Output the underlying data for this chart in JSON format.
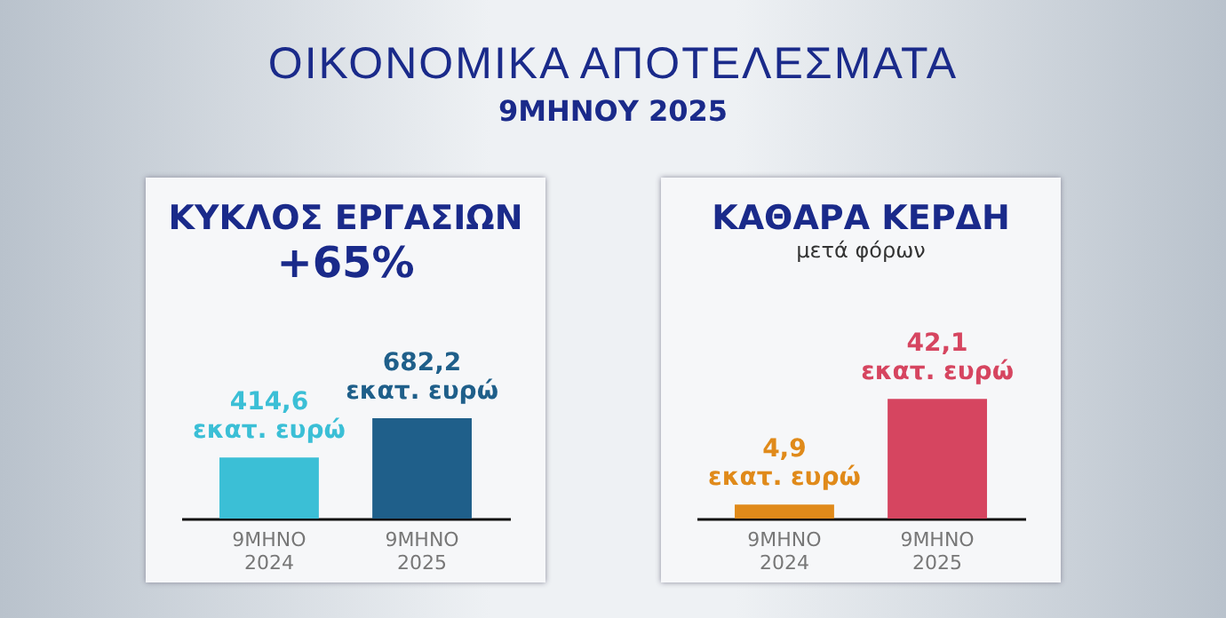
{
  "chart_data": [
    {
      "type": "other",
      "title": "ΟΙΚΟΝΟΜΙΚΑ ΑΠΟΤΕΛΕΣΜΑΤΑ",
      "subtitle": "9ΜΗΝΟΥ 2025"
    },
    {
      "type": "bar",
      "title": "ΚΥΚΛΟΣ ΕΡΓΑΣΙΩΝ",
      "annotations": [
        "+65%"
      ],
      "categories": [
        "9ΜΗΝΟ\n2024",
        "9ΜΗΝΟ\n2025"
      ],
      "values": [
        414.6,
        682.2
      ],
      "colors": [
        "#3bbfd6",
        "#1f5f8a"
      ],
      "value_labels": [
        "414,6\nεκατ. ευρώ",
        "682,2\nεκατ. ευρώ"
      ],
      "tick_labels": "x"
    },
    {
      "type": "bar",
      "title": "ΚΑΘΑΡΑ ΚΕΡΔΗ",
      "subtitle": "μετά φόρων",
      "categories": [
        "9ΜΗΝΟ\n2024",
        "9ΜΗΝΟ\n2025"
      ],
      "values": [
        4.9,
        42.1
      ],
      "colors": [
        "#e08a1a",
        "#d64560"
      ],
      "value_labels": [
        "4,9\nεκατ. ευρώ",
        "42,1\nεκατ. ευρώ"
      ],
      "tick_labels": "x"
    }
  ]
}
